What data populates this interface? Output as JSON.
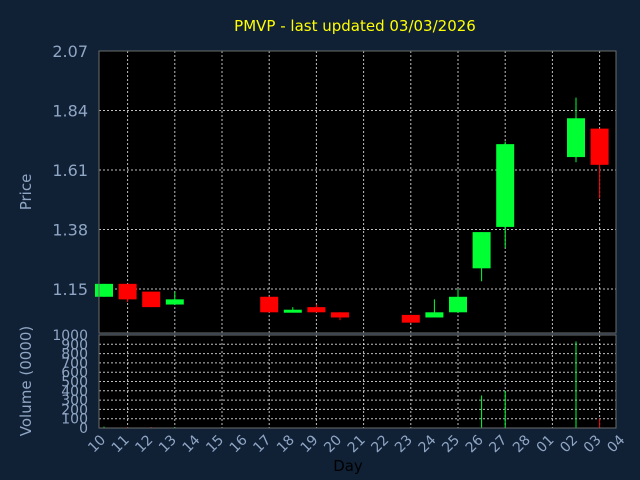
{
  "chart_data": [
    {
      "type": "candlestick",
      "title": "PMVP - last updated 03/03/2026",
      "ylabel": "Price",
      "xlabel": "Day",
      "ylim": [
        0.98,
        2.07
      ],
      "yticks": [
        "2.07",
        "1.84",
        "1.61",
        "1.38",
        "1.15"
      ],
      "ytick_values": [
        2.07,
        1.84,
        1.61,
        1.38,
        1.15
      ],
      "xticks": [
        "10",
        "11",
        "12",
        "13",
        "14",
        "15",
        "16",
        "17",
        "18",
        "19",
        "20",
        "21",
        "22",
        "23",
        "24",
        "25",
        "26",
        "27",
        "28",
        "01",
        "02",
        "03",
        "04"
      ],
      "grid": true,
      "colors": {
        "up": "#00ff33",
        "down": "#ff0000",
        "background": "#102035",
        "plot": "#000000",
        "text": "#8fa6c4",
        "title": "#ffff00"
      },
      "candles": [
        {
          "day": "10",
          "open": 1.12,
          "close": 1.17,
          "high": 1.17,
          "low": 1.12
        },
        {
          "day": "11",
          "open": 1.17,
          "close": 1.11,
          "high": 1.17,
          "low": 1.1
        },
        {
          "day": "12",
          "open": 1.14,
          "close": 1.08,
          "high": 1.14,
          "low": 1.08
        },
        {
          "day": "13",
          "open": 1.09,
          "close": 1.11,
          "high": 1.14,
          "low": 1.09
        },
        {
          "day": "17",
          "open": 1.12,
          "close": 1.06,
          "high": 1.12,
          "low": 1.06
        },
        {
          "day": "18",
          "open": 1.06,
          "close": 1.07,
          "high": 1.08,
          "low": 1.06
        },
        {
          "day": "19",
          "open": 1.08,
          "close": 1.06,
          "high": 1.09,
          "low": 1.06
        },
        {
          "day": "20",
          "open": 1.06,
          "close": 1.04,
          "high": 1.06,
          "low": 1.03
        },
        {
          "day": "23",
          "open": 1.05,
          "close": 1.02,
          "high": 1.05,
          "low": 1.02
        },
        {
          "day": "24",
          "open": 1.04,
          "close": 1.06,
          "high": 1.11,
          "low": 1.04
        },
        {
          "day": "25",
          "open": 1.06,
          "close": 1.12,
          "high": 1.15,
          "low": 1.06
        },
        {
          "day": "26",
          "open": 1.23,
          "close": 1.37,
          "high": 1.37,
          "low": 1.18
        },
        {
          "day": "27",
          "open": 1.39,
          "close": 1.71,
          "high": 1.72,
          "low": 1.31
        },
        {
          "day": "02",
          "open": 1.66,
          "close": 1.81,
          "high": 1.89,
          "low": 1.64
        },
        {
          "day": "03",
          "open": 1.77,
          "close": 1.63,
          "high": 1.77,
          "low": 1.5
        }
      ]
    },
    {
      "type": "bar",
      "ylabel": "Volume (0000)",
      "ylim": [
        0,
        1000
      ],
      "yticks": [
        "1000",
        "900",
        "800",
        "700",
        "600",
        "500",
        "400",
        "300",
        "200",
        "100",
        "0"
      ],
      "ytick_values": [
        1000,
        900,
        800,
        700,
        600,
        500,
        400,
        300,
        200,
        100,
        0
      ],
      "volumes": [
        {
          "day": "10",
          "value": 15,
          "color": "#00ff33"
        },
        {
          "day": "11",
          "value": 10,
          "color": "#ff0000"
        },
        {
          "day": "12",
          "value": 10,
          "color": "#ff0000"
        },
        {
          "day": "13",
          "value": 10,
          "color": "#00ff33"
        },
        {
          "day": "26",
          "value": 350,
          "color": "#00ff33"
        },
        {
          "day": "27",
          "value": 400,
          "color": "#00ff33"
        },
        {
          "day": "02",
          "value": 930,
          "color": "#00ff33"
        },
        {
          "day": "03",
          "value": 100,
          "color": "#ff0000"
        }
      ]
    }
  ]
}
